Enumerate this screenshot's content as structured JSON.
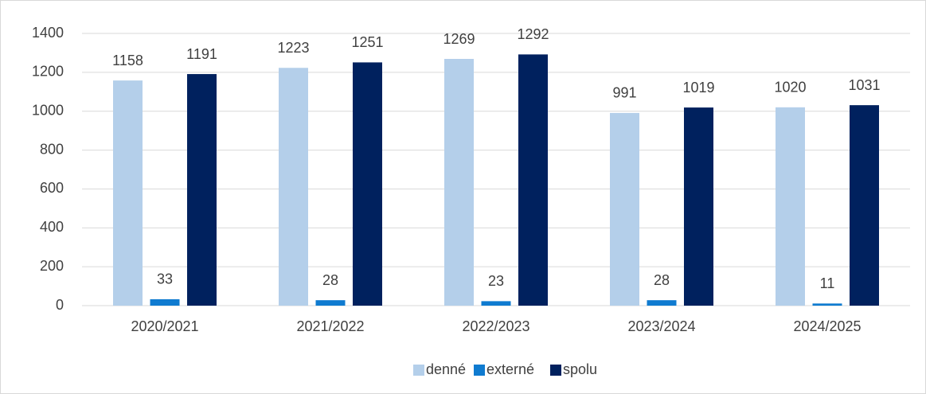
{
  "chart_data": {
    "type": "bar",
    "categories": [
      "2020/2021",
      "2021/2022",
      "2022/2023",
      "2023/2024",
      "2024/2025"
    ],
    "series": [
      {
        "name": "denné",
        "color": "#b4cfea",
        "values": [
          1158,
          1223,
          1269,
          991,
          1020
        ]
      },
      {
        "name": "externé",
        "color": "#0f7bd0",
        "values": [
          33,
          28,
          23,
          28,
          11
        ]
      },
      {
        "name": "spolu",
        "color": "#00215e",
        "values": [
          1191,
          1251,
          1292,
          1019,
          1031
        ]
      }
    ],
    "ylim": [
      0,
      1400
    ],
    "yticks": [
      0,
      200,
      400,
      600,
      800,
      1000,
      1200,
      1400
    ],
    "grid": true,
    "legend": "bottom"
  }
}
